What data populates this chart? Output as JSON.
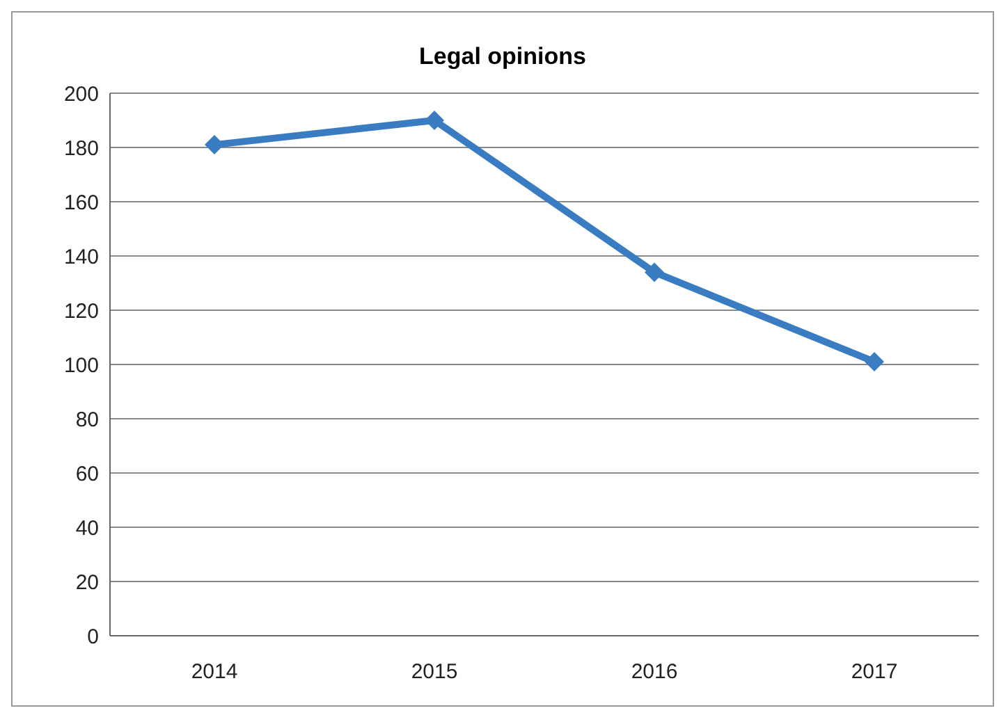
{
  "chart_data": {
    "type": "line",
    "title": "Legal opinions",
    "categories": [
      "2014",
      "2015",
      "2016",
      "2017"
    ],
    "series": [
      {
        "color": "#3a7cc1",
        "values": [
          181,
          190,
          134,
          101
        ]
      }
    ],
    "ylim": [
      0,
      200
    ],
    "yticks": [
      0,
      20,
      40,
      60,
      80,
      100,
      120,
      140,
      160,
      180,
      200
    ],
    "grid": "y",
    "legend": false,
    "marker": "diamond",
    "line_style": "solid"
  }
}
